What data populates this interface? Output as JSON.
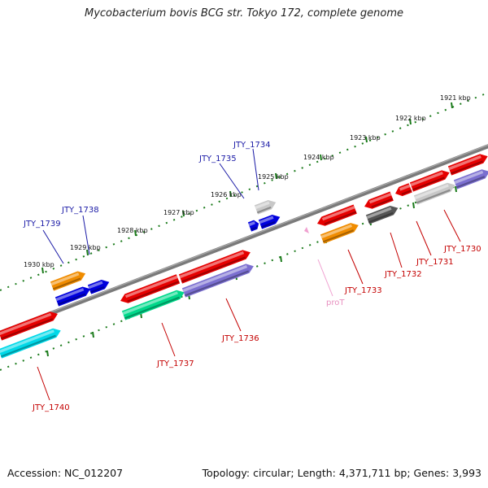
{
  "title": "Mycobacterium bovis BCG str. Tokyo 172, complete genome",
  "footer": {
    "accession": "Accession: NC_012207",
    "summary": "Topology: circular; Length: 4,371,711 bp; Genes: 3,993"
  },
  "colors": {
    "red": "#e60000",
    "orange": "#f08c00",
    "blue": "#0000dd",
    "cyan": "#00d8e8",
    "green": "#00d88a",
    "purple": "#7b6fd0",
    "light_gray": "#c8c8c8",
    "dark_gray": "#555555",
    "pink": "#f0a0d0",
    "tick_green": "#1a7a1a",
    "backbone": "#7a7a7a"
  },
  "kbp_ticks": [
    {
      "label": "1921 kbp",
      "pos": 1921
    },
    {
      "label": "1922 kbp",
      "pos": 1922
    },
    {
      "label": "1923 kbp",
      "pos": 1923
    },
    {
      "label": "1924 kbp",
      "pos": 1924
    },
    {
      "label": "1925 kbp",
      "pos": 1925
    },
    {
      "label": "1926 kbp",
      "pos": 1926
    },
    {
      "label": "1927 kbp",
      "pos": 1927
    },
    {
      "label": "1928 kbp",
      "pos": 1928
    },
    {
      "label": "1929 kbp",
      "pos": 1929
    },
    {
      "label": "1930 kbp",
      "pos": 1930
    }
  ],
  "genes_top": [
    {
      "name": "JTY_1734",
      "color": "blue"
    },
    {
      "name": "JTY_1735",
      "color": "blue"
    },
    {
      "name": "JTY_1738",
      "color": "blue"
    },
    {
      "name": "JTY_1739",
      "color": "blue"
    }
  ],
  "genes_bottom": [
    {
      "name": "JTY_1730",
      "color": "red"
    },
    {
      "name": "JTY_1731",
      "color": "red"
    },
    {
      "name": "JTY_1732",
      "color": "red"
    },
    {
      "name": "JTY_1733",
      "color": "red"
    },
    {
      "name": "JTY_1736",
      "color": "red"
    },
    {
      "name": "JTY_1737",
      "color": "red"
    },
    {
      "name": "JTY_1740",
      "color": "red"
    }
  ],
  "promoter": {
    "name": "proT",
    "color": "pink"
  }
}
